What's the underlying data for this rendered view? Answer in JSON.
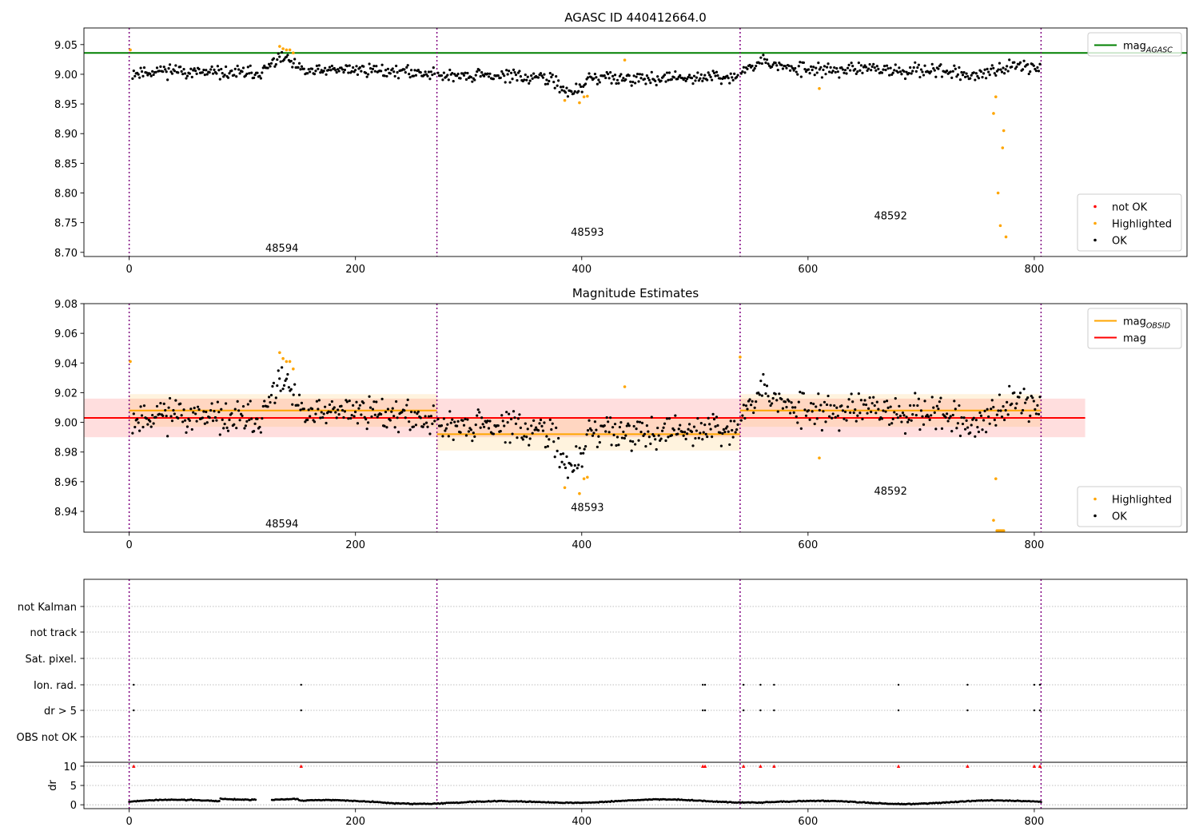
{
  "chart_data": [
    {
      "type": "scatter",
      "title": "AGASC ID 440412664.0",
      "xlim": [
        -40,
        935
      ],
      "ylim": [
        8.693,
        9.078
      ],
      "xticks": [
        0,
        200,
        400,
        600,
        800
      ],
      "yticks": [
        8.7,
        8.75,
        8.8,
        8.85,
        8.9,
        8.95,
        9.0,
        9.05
      ],
      "ytick_decimals": 2,
      "obsid_boundaries": [
        0,
        272,
        540,
        806
      ],
      "obsid_labels": [
        {
          "text": "48594",
          "x": 135,
          "y": 8.708
        },
        {
          "text": "48593",
          "x": 405,
          "y": 8.735
        },
        {
          "text": "48592",
          "x": 673,
          "y": 8.762
        }
      ],
      "hlines": [
        {
          "name": "mag_AGASC",
          "y": 9.036,
          "x0": -40,
          "x1": 935,
          "color": "#008000"
        }
      ],
      "legends": [
        {
          "position": "top-right",
          "entries": [
            {
              "label": "mag",
              "sub": "AGASC",
              "kind": "line",
              "color": "#008000"
            }
          ]
        },
        {
          "position": "bottom-right",
          "entries": [
            {
              "label": "not OK",
              "kind": "dot",
              "color": "#ff0000"
            },
            {
              "label": "Highlighted",
              "kind": "dot",
              "color": "#ffa500"
            },
            {
              "label": "OK",
              "kind": "dot",
              "color": "#000000"
            }
          ]
        }
      ],
      "series": [
        {
          "name": "Highlighted",
          "color": "#ffa500",
          "x": [
            1,
            133,
            136,
            139,
            142,
            145,
            385,
            398,
            402,
            405,
            438,
            610,
            764,
            766,
            768,
            770,
            772,
            773,
            775
          ],
          "y": [
            9.041,
            9.047,
            9.043,
            9.041,
            9.041,
            9.036,
            8.956,
            8.952,
            8.962,
            8.963,
            9.024,
            8.976,
            8.934,
            8.962,
            8.8,
            8.745,
            8.876,
            8.905,
            8.726
          ]
        }
      ],
      "ok_segments": [
        {
          "x0": 3,
          "x1": 270,
          "n": 260,
          "base": 9.002,
          "bumps": [
            [
              35,
              0.005,
              20
            ],
            [
              135,
              0.025,
              12
            ],
            [
              200,
              0.006,
              40
            ]
          ],
          "noise": 0.0075,
          "seed": 11
        },
        {
          "x0": 273,
          "x1": 538,
          "n": 255,
          "base": 8.997,
          "bumps": [
            [
              390,
              -0.028,
              14
            ],
            [
              470,
              -0.004,
              40
            ]
          ],
          "noise": 0.0075,
          "seed": 29
        },
        {
          "x0": 541,
          "x1": 805,
          "n": 245,
          "base": 9.008,
          "bumps": [
            [
              560,
              0.014,
              15
            ],
            [
              745,
              -0.011,
              16
            ],
            [
              790,
              0.006,
              12
            ]
          ],
          "noise": 0.0085,
          "seed": 53
        }
      ]
    },
    {
      "type": "scatter",
      "title": "Magnitude Estimates",
      "xlim": [
        -40,
        935
      ],
      "ylim": [
        8.926,
        9.08
      ],
      "xticks": [
        0,
        200,
        400,
        600,
        800
      ],
      "yticks": [
        8.94,
        8.96,
        8.98,
        9.0,
        9.02,
        9.04,
        9.06,
        9.08
      ],
      "ytick_decimals": 2,
      "obsid_boundaries": [
        0,
        272,
        540,
        806
      ],
      "obsid_labels": [
        {
          "text": "48594",
          "x": 135,
          "y": 8.932
        },
        {
          "text": "48593",
          "x": 405,
          "y": 8.943
        },
        {
          "text": "48592",
          "x": 673,
          "y": 8.954
        }
      ],
      "bands": [
        {
          "name": "mag band",
          "x0": -40,
          "x1": 845,
          "y0": 8.99,
          "y1": 9.016,
          "color": "rgba(255,0,0,0.13)"
        },
        {
          "name": "obsid 48594 band",
          "x0": 0,
          "x1": 272,
          "y0": 8.997,
          "y1": 9.019,
          "color": "rgba(255,165,0,0.13)"
        },
        {
          "name": "obsid 48593 band",
          "x0": 272,
          "x1": 540,
          "y0": 8.981,
          "y1": 9.003,
          "color": "rgba(255,165,0,0.13)"
        },
        {
          "name": "obsid 48592 band",
          "x0": 540,
          "x1": 806,
          "y0": 8.997,
          "y1": 9.019,
          "color": "rgba(255,165,0,0.13)"
        }
      ],
      "hlines": [
        {
          "name": "mag_OBSID 48594",
          "y": 9.008,
          "x0": 0,
          "x1": 272,
          "color": "#ffa500"
        },
        {
          "name": "mag_OBSID 48593",
          "y": 8.992,
          "x0": 272,
          "x1": 540,
          "color": "#ffa500"
        },
        {
          "name": "mag_OBSID 48592",
          "y": 9.008,
          "x0": 540,
          "x1": 806,
          "color": "#ffa500"
        },
        {
          "name": "mag",
          "y": 9.003,
          "x0": -40,
          "x1": 845,
          "color": "#ff0000"
        }
      ],
      "legends": [
        {
          "position": "top-right",
          "entries": [
            {
              "label": "mag",
              "sub": "OBSID",
              "kind": "line",
              "color": "#ffa500"
            },
            {
              "label": "mag",
              "kind": "line",
              "color": "#ff0000"
            }
          ]
        },
        {
          "position": "bottom-right",
          "entries": [
            {
              "label": "Highlighted",
              "kind": "dot",
              "color": "#ffa500"
            },
            {
              "label": "OK",
              "kind": "dot",
              "color": "#000000"
            }
          ]
        }
      ],
      "series": [
        {
          "name": "Highlighted",
          "color": "#ffa500",
          "x": [
            1,
            133,
            136,
            139,
            142,
            145,
            385,
            398,
            402,
            405,
            438,
            540,
            610,
            764,
            766,
            767,
            768,
            769,
            770,
            771,
            772,
            773
          ],
          "y": [
            9.041,
            9.047,
            9.043,
            9.041,
            9.041,
            9.036,
            8.956,
            8.952,
            8.962,
            8.963,
            9.024,
            9.044,
            8.976,
            8.934,
            8.962,
            8.927,
            8.927,
            8.927,
            8.927,
            8.927,
            8.927,
            8.927
          ]
        }
      ],
      "ok_segments": [
        {
          "x0": 3,
          "x1": 270,
          "n": 260,
          "base": 9.002,
          "bumps": [
            [
              35,
              0.005,
              20
            ],
            [
              135,
              0.025,
              12
            ],
            [
              200,
              0.006,
              40
            ]
          ],
          "noise": 0.0075,
          "seed": 11
        },
        {
          "x0": 273,
          "x1": 538,
          "n": 255,
          "base": 8.997,
          "bumps": [
            [
              390,
              -0.028,
              14
            ],
            [
              470,
              -0.004,
              40
            ]
          ],
          "noise": 0.0075,
          "seed": 29
        },
        {
          "x0": 541,
          "x1": 805,
          "n": 245,
          "base": 9.008,
          "bumps": [
            [
              560,
              0.014,
              15
            ],
            [
              745,
              -0.011,
              16
            ],
            [
              790,
              0.006,
              12
            ]
          ],
          "noise": 0.0085,
          "seed": 53
        }
      ]
    },
    {
      "type": "scatter",
      "title": "",
      "xlim": [
        -40,
        935
      ],
      "xticks": [
        0,
        200,
        400,
        600,
        800
      ],
      "obsid_boundaries": [
        0,
        272,
        540,
        806
      ],
      "categories": [
        "not Kalman",
        "not track",
        "Sat. pixel.",
        "Ion. rad.",
        "dr > 5",
        "OBS not OK"
      ],
      "flag_events": {
        "Ion. rad.": [
          4,
          152,
          507,
          509,
          543,
          558,
          570,
          680,
          741,
          800,
          805
        ],
        "dr > 5": [
          4,
          152,
          507,
          509,
          543,
          558,
          570,
          680,
          741,
          800,
          805
        ]
      },
      "dr": {
        "ylabel": "dr",
        "yticks": [
          0,
          5,
          10
        ],
        "ylim": [
          -1,
          11
        ],
        "clip_marker_y": 10,
        "clipped_x": [
          4,
          152,
          507,
          509,
          543,
          558,
          570,
          680,
          741,
          800,
          805
        ],
        "samples": 780,
        "x0": 0,
        "x1": 806,
        "gap": [
          112,
          126
        ]
      }
    }
  ]
}
